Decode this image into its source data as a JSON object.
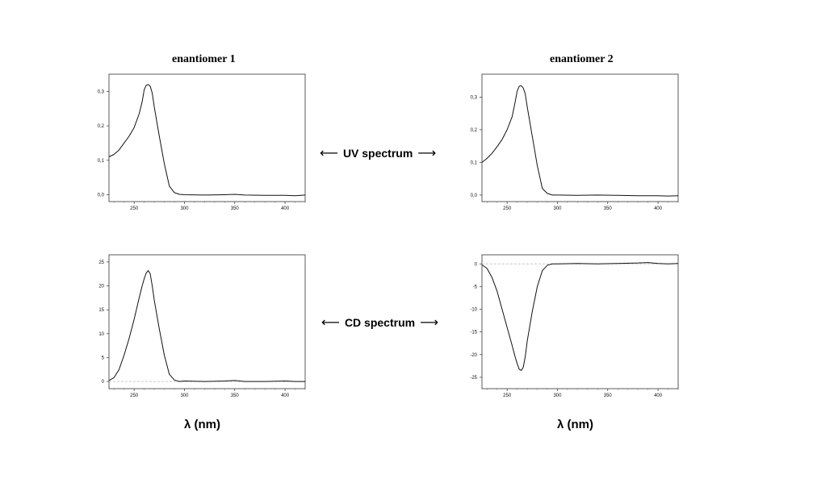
{
  "labels": {
    "enantiomer_1": "enantiomer 1",
    "enantiomer_2": "enantiomer 2",
    "uv_spectrum": "UV spectrum",
    "cd_spectrum": "CD spectrum",
    "xlabel": "λ (nm)",
    "arrow_left": "⟵",
    "arrow_right": "⟶"
  },
  "chart_data": [
    {
      "id": "uv1",
      "type": "line",
      "title": "enantiomer 1",
      "xlabel": "",
      "ylabel": "",
      "xlim": [
        225,
        420
      ],
      "ylim": [
        -0.02,
        0.35
      ],
      "xticks": [
        250,
        300,
        350,
        400
      ],
      "yticks": [
        0.0,
        0.1,
        0.2,
        0.3
      ],
      "ytick_labels": [
        "0,0",
        "0,1",
        "0,2",
        "0,3"
      ],
      "zero_line": false,
      "series": [
        {
          "values": [
            [
              225,
              0.11
            ],
            [
              230,
              0.117
            ],
            [
              235,
              0.13
            ],
            [
              240,
              0.15
            ],
            [
              245,
              0.17
            ],
            [
              250,
              0.195
            ],
            [
              255,
              0.235
            ],
            [
              258,
              0.27
            ],
            [
              260,
              0.305
            ],
            [
              262,
              0.318
            ],
            [
              264,
              0.32
            ],
            [
              266,
              0.315
            ],
            [
              268,
              0.295
            ],
            [
              270,
              0.255
            ],
            [
              275,
              0.17
            ],
            [
              280,
              0.09
            ],
            [
              285,
              0.025
            ],
            [
              290,
              0.006
            ],
            [
              295,
              0.001
            ],
            [
              300,
              0.0
            ],
            [
              320,
              -0.001
            ],
            [
              340,
              0.0
            ],
            [
              350,
              0.001
            ],
            [
              360,
              -0.001
            ],
            [
              380,
              -0.002
            ],
            [
              400,
              -0.002
            ],
            [
              410,
              -0.003
            ],
            [
              420,
              -0.001
            ]
          ]
        }
      ]
    },
    {
      "id": "uv2",
      "type": "line",
      "title": "enantiomer 2",
      "xlabel": "",
      "ylabel": "",
      "xlim": [
        225,
        420
      ],
      "ylim": [
        -0.02,
        0.37
      ],
      "xticks": [
        250,
        300,
        350,
        400
      ],
      "yticks": [
        0.0,
        0.1,
        0.2,
        0.3
      ],
      "ytick_labels": [
        "0,0",
        "0,1",
        "0,2",
        "0,3"
      ],
      "zero_line": false,
      "series": [
        {
          "values": [
            [
              225,
              0.1
            ],
            [
              230,
              0.112
            ],
            [
              235,
              0.128
            ],
            [
              240,
              0.148
            ],
            [
              245,
              0.17
            ],
            [
              250,
              0.2
            ],
            [
              255,
              0.24
            ],
            [
              258,
              0.285
            ],
            [
              260,
              0.318
            ],
            [
              262,
              0.333
            ],
            [
              264,
              0.335
            ],
            [
              266,
              0.328
            ],
            [
              268,
              0.31
            ],
            [
              270,
              0.27
            ],
            [
              275,
              0.18
            ],
            [
              280,
              0.09
            ],
            [
              285,
              0.02
            ],
            [
              290,
              0.005
            ],
            [
              295,
              0.0
            ],
            [
              300,
              0.0
            ],
            [
              320,
              -0.001
            ],
            [
              340,
              0.0
            ],
            [
              360,
              -0.001
            ],
            [
              380,
              -0.002
            ],
            [
              400,
              -0.002
            ],
            [
              410,
              -0.003
            ],
            [
              420,
              -0.002
            ]
          ]
        }
      ]
    },
    {
      "id": "cd1",
      "type": "line",
      "title": "",
      "xlabel": "λ (nm)",
      "ylabel": "",
      "xlim": [
        225,
        420
      ],
      "ylim": [
        -1.5,
        26.5
      ],
      "xticks": [
        250,
        300,
        350,
        400
      ],
      "yticks": [
        0,
        5,
        10,
        15,
        20,
        25
      ],
      "ytick_labels": [
        "0",
        "5",
        "10",
        "15",
        "20",
        "25"
      ],
      "zero_line": true,
      "series": [
        {
          "values": [
            [
              225,
              0.2
            ],
            [
              230,
              0.8
            ],
            [
              235,
              2.5
            ],
            [
              240,
              5.5
            ],
            [
              245,
              9.0
            ],
            [
              250,
              13.0
            ],
            [
              255,
              17.5
            ],
            [
              258,
              20.0
            ],
            [
              260,
              21.5
            ],
            [
              262,
              22.7
            ],
            [
              264,
              23.2
            ],
            [
              266,
              22.5
            ],
            [
              268,
              20.0
            ],
            [
              270,
              17.0
            ],
            [
              275,
              11.0
            ],
            [
              280,
              5.5
            ],
            [
              285,
              1.5
            ],
            [
              290,
              0.3
            ],
            [
              295,
              0.0
            ],
            [
              300,
              0.1
            ],
            [
              320,
              0.0
            ],
            [
              340,
              0.1
            ],
            [
              350,
              0.2
            ],
            [
              360,
              0.0
            ],
            [
              380,
              0.0
            ],
            [
              400,
              0.1
            ],
            [
              410,
              0.0
            ],
            [
              420,
              0.0
            ]
          ]
        }
      ]
    },
    {
      "id": "cd2",
      "type": "line",
      "title": "",
      "xlabel": "λ (nm)",
      "ylabel": "",
      "xlim": [
        225,
        420
      ],
      "ylim": [
        -27.5,
        2.0
      ],
      "xticks": [
        250,
        300,
        350,
        400
      ],
      "yticks": [
        0,
        -5,
        -10,
        -15,
        -20,
        -25
      ],
      "ytick_labels": [
        "0",
        "-5",
        "-10",
        "-15",
        "-20",
        "-25"
      ],
      "zero_line": true,
      "series": [
        {
          "values": [
            [
              225,
              -0.2
            ],
            [
              230,
              -1.0
            ],
            [
              235,
              -3.0
            ],
            [
              240,
              -6.0
            ],
            [
              245,
              -10.0
            ],
            [
              250,
              -14.0
            ],
            [
              255,
              -18.0
            ],
            [
              258,
              -20.5
            ],
            [
              260,
              -22.0
            ],
            [
              262,
              -23.2
            ],
            [
              264,
              -23.5
            ],
            [
              266,
              -22.8
            ],
            [
              268,
              -20.5
            ],
            [
              270,
              -17.0
            ],
            [
              275,
              -10.5
            ],
            [
              280,
              -5.0
            ],
            [
              285,
              -1.5
            ],
            [
              290,
              -0.3
            ],
            [
              295,
              0.0
            ],
            [
              300,
              0.0
            ],
            [
              320,
              0.1
            ],
            [
              340,
              0.0
            ],
            [
              360,
              0.1
            ],
            [
              380,
              0.2
            ],
            [
              390,
              0.3
            ],
            [
              400,
              0.1
            ],
            [
              410,
              0.0
            ],
            [
              420,
              0.1
            ]
          ]
        }
      ]
    }
  ]
}
